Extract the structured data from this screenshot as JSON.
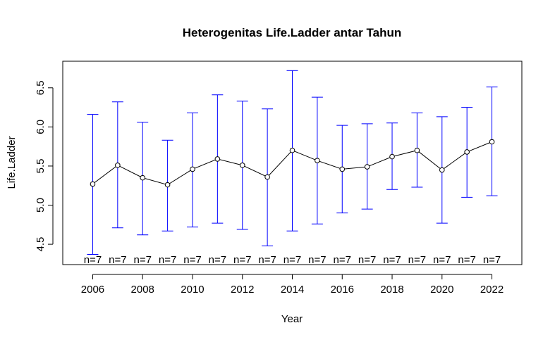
{
  "chart_data": {
    "type": "line",
    "title": "Heterogenitas Life.Ladder antar Tahun",
    "xlabel": "Year",
    "ylabel": "Life.Ladder",
    "x": [
      2006,
      2007,
      2008,
      2009,
      2010,
      2011,
      2012,
      2013,
      2014,
      2015,
      2016,
      2017,
      2018,
      2019,
      2020,
      2021,
      2022
    ],
    "mean": [
      5.27,
      5.51,
      5.35,
      5.26,
      5.46,
      5.59,
      5.51,
      5.36,
      5.7,
      5.57,
      5.46,
      5.49,
      5.62,
      5.7,
      5.45,
      5.68,
      5.81
    ],
    "upper": [
      6.16,
      6.32,
      6.06,
      5.83,
      6.18,
      6.41,
      6.33,
      6.23,
      6.72,
      6.38,
      6.02,
      6.04,
      6.05,
      6.18,
      6.13,
      6.25,
      6.51
    ],
    "lower": [
      4.37,
      4.71,
      4.62,
      4.67,
      4.72,
      4.77,
      4.69,
      4.48,
      4.67,
      4.76,
      4.9,
      4.95,
      5.2,
      5.23,
      4.77,
      5.1,
      5.12
    ],
    "n_labels": [
      "n=7",
      "n=7",
      "n=7",
      "n=7",
      "n=7",
      "n=7",
      "n=7",
      "n=7",
      "n=7",
      "n=7",
      "n=7",
      "n=7",
      "n=7",
      "n=7",
      "n=7",
      "n=7",
      "n=7"
    ],
    "xticks": [
      2006,
      2008,
      2010,
      2012,
      2014,
      2016,
      2018,
      2020,
      2022
    ],
    "yticks": [
      4.5,
      5.0,
      5.5,
      6.0,
      6.5
    ],
    "xlim": [
      2004.8,
      2023.2
    ],
    "ylim": [
      4.24,
      6.84
    ],
    "grid": false,
    "colors": {
      "errorbar": "#0000ff",
      "line": "#000000",
      "points": "#000000"
    }
  }
}
